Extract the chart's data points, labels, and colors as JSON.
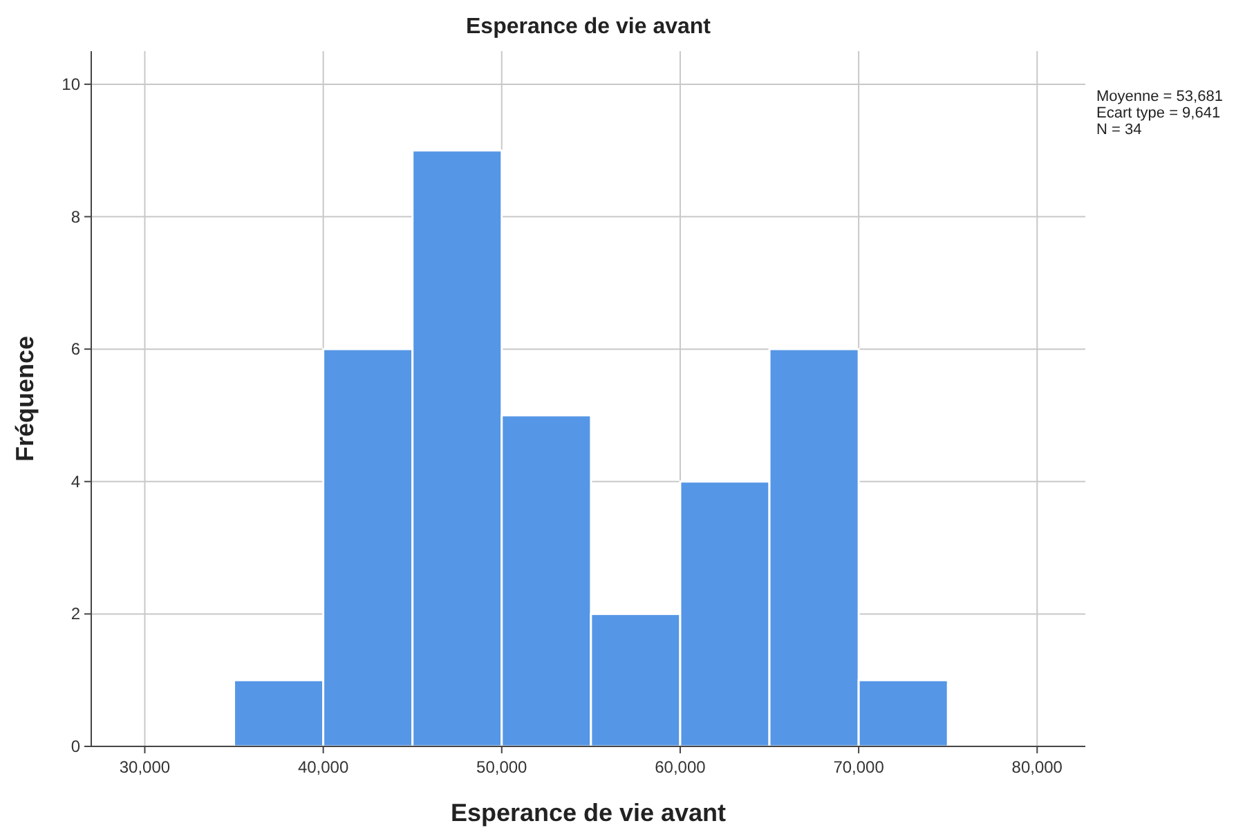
{
  "chart_data": {
    "type": "histogram",
    "title": "Esperance de vie avant",
    "xlabel": "Esperance de vie avant",
    "ylabel": "Fréquence",
    "bins": [
      30000,
      35000,
      40000,
      45000,
      50000,
      55000,
      60000,
      65000,
      70000,
      75000,
      80000
    ],
    "values": [
      0,
      1,
      6,
      9,
      5,
      2,
      4,
      6,
      1,
      0
    ],
    "color": "#5596e6",
    "xlim": [
      27000,
      82700
    ],
    "xticks": [
      {
        "value": 30000,
        "label": "30,000"
      },
      {
        "value": 40000,
        "label": "40,000"
      },
      {
        "value": 50000,
        "label": "50,000"
      },
      {
        "value": 60000,
        "label": "60,000"
      },
      {
        "value": 70000,
        "label": "70,000"
      },
      {
        "value": 80000,
        "label": "80,000"
      }
    ],
    "ylim": [
      0,
      10.5
    ],
    "yticks": [
      0,
      2,
      4,
      6,
      8,
      10
    ],
    "grid": true,
    "annotations": [
      "Moyenne = 53,681",
      "Ecart type = 9,641",
      "N = 34"
    ]
  }
}
